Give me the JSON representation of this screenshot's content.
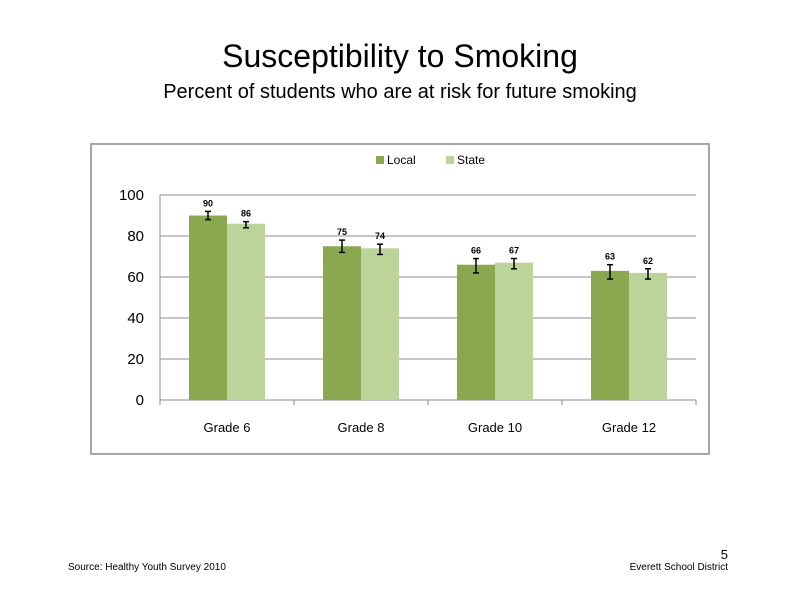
{
  "slide": {
    "title": "Susceptibility  to  Smoking",
    "subtitle": "Percent  of students  who are at risk for future  smoking",
    "source": "Source: Healthy  Youth Survey 2010",
    "district": "Everett  School District",
    "page_number": "5"
  },
  "colors": {
    "local": "#8aa850",
    "state": "#bcd39a",
    "grid": "#8c8c8c",
    "frame": "#a6a6a6"
  },
  "chart_data": {
    "type": "bar",
    "title": "",
    "xlabel": "",
    "ylabel": "",
    "ylim": [
      0,
      100
    ],
    "yticks": [
      0,
      20,
      40,
      60,
      80,
      100
    ],
    "grid": true,
    "legend_position": "top",
    "categories": [
      "Grade 6",
      "Grade 8",
      "Grade 10",
      "Grade 12"
    ],
    "series": [
      {
        "name": "Local",
        "values": [
          90,
          75,
          66,
          63
        ],
        "error_low": [
          88,
          72,
          62,
          59
        ],
        "error_high": [
          92,
          78,
          69,
          66
        ],
        "value_labels": [
          "90",
          "75",
          "66",
          "63"
        ]
      },
      {
        "name": "State",
        "values": [
          86,
          74,
          67,
          62
        ],
        "error_low": [
          84,
          71,
          64,
          59
        ],
        "error_high": [
          87,
          76,
          69,
          64
        ],
        "value_labels": [
          "86",
          "74",
          "67",
          "62"
        ]
      }
    ]
  }
}
